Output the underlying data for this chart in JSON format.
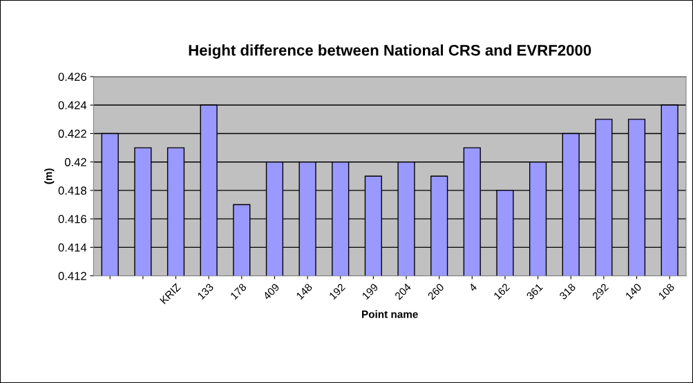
{
  "chart_data": {
    "type": "bar",
    "title": "Height difference between National CRS and EVRF2000",
    "xlabel": "Point name",
    "ylabel": "(m)",
    "categories": [
      null,
      null,
      "KRIZ",
      "133",
      "178",
      "409",
      "148",
      "192",
      "199",
      "204",
      "260",
      "4",
      "162",
      "361",
      "318",
      "292",
      "140",
      "108"
    ],
    "values": [
      0.422,
      0.421,
      0.421,
      0.424,
      0.417,
      0.42,
      0.42,
      0.42,
      0.419,
      0.42,
      0.419,
      0.421,
      0.418,
      0.42,
      0.422,
      0.423,
      0.423,
      0.424
    ],
    "color": "#9999ff",
    "ylim": [
      0.412,
      0.426
    ],
    "yticks": [
      0.412,
      0.414,
      0.416,
      0.418,
      0.42,
      0.422,
      0.424,
      0.426
    ],
    "grid": "y",
    "legend": false
  }
}
